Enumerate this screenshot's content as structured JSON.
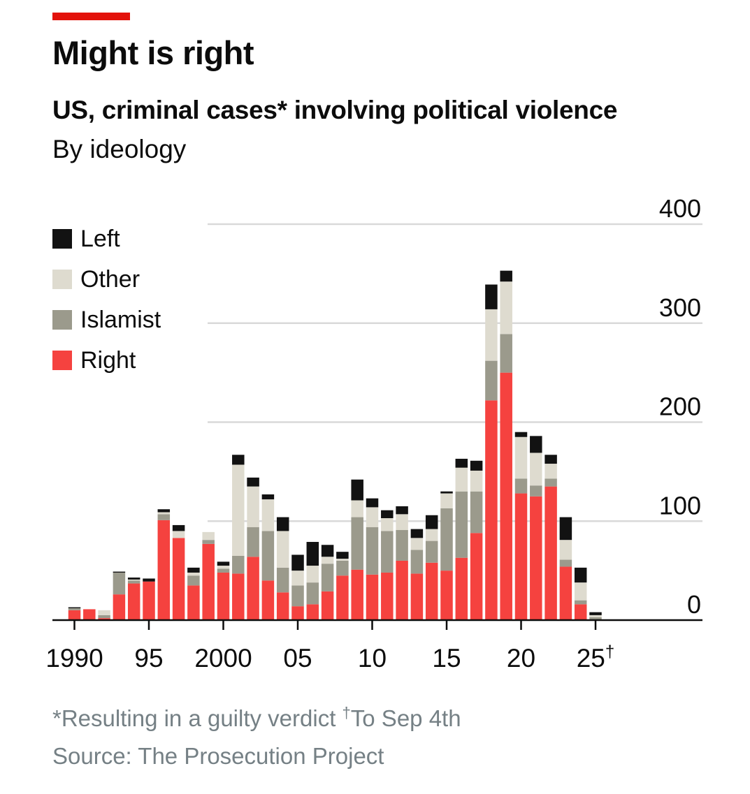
{
  "header": {
    "title": "Might is right",
    "subtitle": "US, criminal cases* involving political violence",
    "subsubtitle": "By ideology"
  },
  "footer": {
    "footnote_a": "*Resulting in a guilty verdict ",
    "dagger": "†",
    "footnote_b": "To Sep 4th",
    "source": "Source: The Prosecution Project"
  },
  "colors": {
    "Right": "#f5423f",
    "Islamist": "#9b9a8c",
    "Other": "#dedbcf",
    "Left": "#121212",
    "accent": "#e3120b",
    "grid": "#d9d9d9",
    "axis": "#0c0c0c"
  },
  "chart_data": {
    "type": "bar",
    "stacked": true,
    "title": "Might is right",
    "subtitle": "US, criminal cases* involving political violence",
    "ylim": [
      0,
      400
    ],
    "y_ticks": [
      0,
      100,
      200,
      300,
      400
    ],
    "y_axis_side": "right",
    "grid": true,
    "legend_position": "top-left",
    "x_tick_years": [
      1990,
      1995,
      2000,
      2005,
      2010,
      2015,
      2020,
      2025
    ],
    "x_tick_labels": [
      "1990",
      "95",
      "2000",
      "05",
      "10",
      "15",
      "20",
      "25"
    ],
    "x_tick_marker": "†",
    "categories": [
      1990,
      1991,
      1992,
      1993,
      1994,
      1995,
      1996,
      1997,
      1998,
      1999,
      2000,
      2001,
      2002,
      2003,
      2004,
      2005,
      2006,
      2007,
      2008,
      2009,
      2010,
      2011,
      2012,
      2013,
      2014,
      2015,
      2016,
      2017,
      2018,
      2019,
      2020,
      2021,
      2022,
      2023,
      2024,
      2025
    ],
    "series": [
      {
        "name": "Right",
        "values": [
          10,
          11,
          2,
          26,
          37,
          39,
          101,
          83,
          35,
          77,
          48,
          47,
          64,
          40,
          28,
          14,
          16,
          29,
          45,
          51,
          46,
          48,
          60,
          47,
          58,
          50,
          63,
          88,
          222,
          250,
          128,
          125,
          135,
          54,
          16,
          0
        ]
      },
      {
        "name": "Islamist",
        "values": [
          2,
          0,
          3,
          22,
          3,
          0,
          6,
          0,
          10,
          4,
          4,
          18,
          30,
          50,
          25,
          21,
          22,
          28,
          15,
          53,
          48,
          42,
          31,
          24,
          22,
          63,
          67,
          42,
          40,
          39,
          15,
          11,
          8,
          7,
          4,
          3
        ]
      },
      {
        "name": "Other",
        "values": [
          0,
          0,
          5,
          0,
          1,
          0,
          2,
          7,
          3,
          8,
          3,
          92,
          41,
          32,
          37,
          15,
          17,
          7,
          2,
          17,
          20,
          13,
          16,
          12,
          12,
          15,
          24,
          21,
          52,
          53,
          42,
          33,
          15,
          20,
          18,
          2
        ]
      },
      {
        "name": "Left",
        "values": [
          1,
          0,
          0,
          1,
          2,
          3,
          3,
          6,
          5,
          0,
          4,
          10,
          9,
          5,
          14,
          16,
          24,
          12,
          7,
          21,
          9,
          8,
          8,
          9,
          14,
          2,
          9,
          10,
          25,
          11,
          5,
          17,
          9,
          23,
          15,
          3
        ]
      }
    ]
  }
}
